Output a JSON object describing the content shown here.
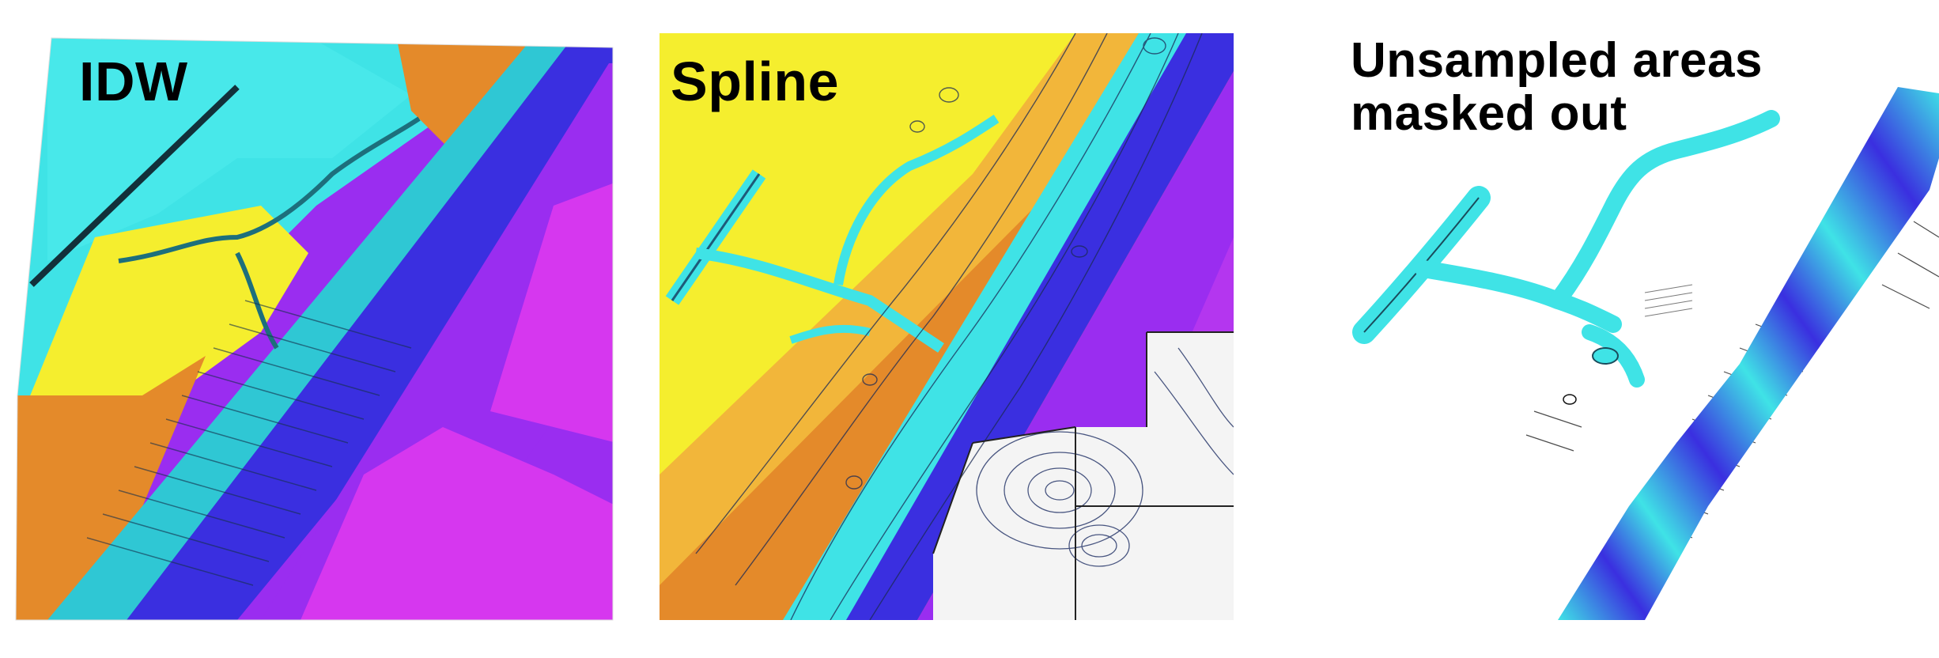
{
  "panels": [
    {
      "id": "idw",
      "label": "IDW"
    },
    {
      "id": "spline",
      "label": "Spline"
    },
    {
      "id": "masked",
      "label": "Unsampled areas masked out"
    }
  ],
  "colors": {
    "cyan": "#3fe3e6",
    "yellow": "#f5ee2e",
    "orange": "#e48a2a",
    "blue": "#3a2fe0",
    "purple": "#9a2df0",
    "magenta": "#d637ef",
    "white_mask": "#f4f4f4"
  }
}
